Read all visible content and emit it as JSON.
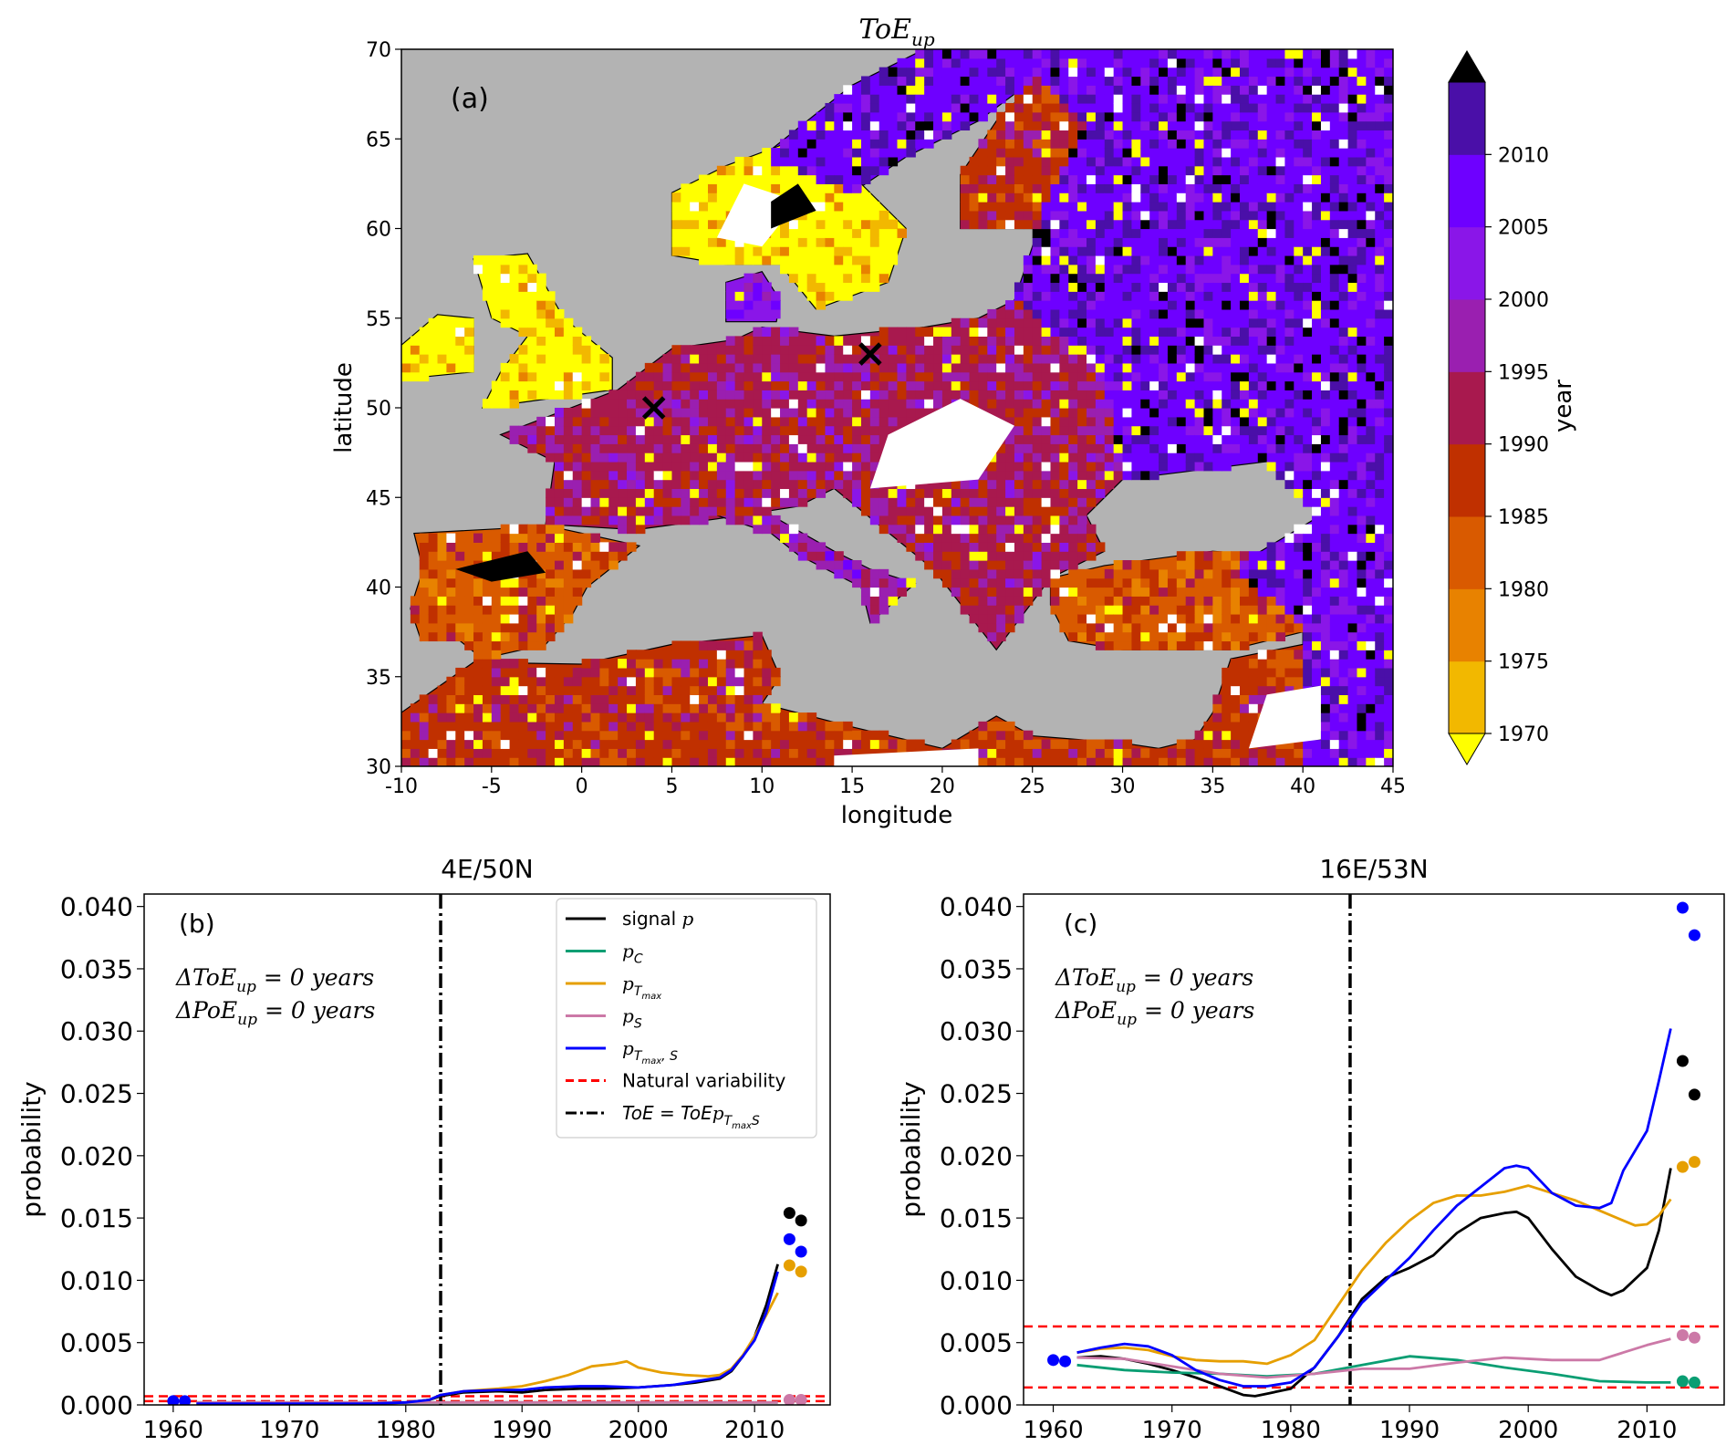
{
  "figure": {
    "map_title_main": "ToE",
    "map_title_sub": "up"
  },
  "chart_data": [
    {
      "type": "heatmap",
      "panel_label": "(a)",
      "title": "ToE_up",
      "xlabel": "longitude",
      "ylabel": "latitude",
      "xlim": [
        -10,
        45
      ],
      "ylim": [
        30,
        70
      ],
      "xticks": [
        "-10",
        "-5",
        "0",
        "5",
        "10",
        "15",
        "20",
        "25",
        "30",
        "35",
        "40",
        "45"
      ],
      "yticks": [
        "30",
        "35",
        "40",
        "45",
        "50",
        "55",
        "60",
        "65",
        "70"
      ],
      "colorbar": {
        "label": "year",
        "ticks": [
          "1970",
          "1975",
          "1980",
          "1985",
          "1990",
          "1995",
          "2000",
          "2005",
          "2010"
        ],
        "colors": [
          "#f2b800",
          "#e88200",
          "#d95a00",
          "#c03000",
          "#a8194e",
          "#9a1fb0",
          "#8a16e8",
          "#6e00ff",
          "#4a0fa8"
        ],
        "under_color": "#ffff00",
        "over_color": "#000000"
      },
      "colors": {
        "sea": "#b3b3b3",
        "no_emergence": "#ffffff"
      },
      "markers": [
        {
          "lon": 4,
          "lat": 50,
          "symbol": "x"
        },
        {
          "lon": 16,
          "lat": 53,
          "symbol": "x"
        }
      ]
    },
    {
      "type": "line",
      "panel_label": "(b)",
      "title": "4E/50N",
      "ylabel": "probability",
      "xlim": [
        1957.5,
        2016.5
      ],
      "ylim": [
        0,
        0.041
      ],
      "xticks": [
        "1960",
        "1970",
        "1980",
        "1990",
        "2000",
        "2010"
      ],
      "yticks": [
        "0.000",
        "0.005",
        "0.010",
        "0.015",
        "0.020",
        "0.025",
        "0.030",
        "0.035",
        "0.040"
      ],
      "annotations": [
        {
          "text": "ΔToE",
          "sub": "up",
          "rest": "= 0 years"
        },
        {
          "text": "ΔPoE",
          "sub": "up",
          "rest": "= 0 years"
        }
      ],
      "toe_year": 1983,
      "natural_variability": [
        0.0003,
        0.0007
      ],
      "series": [
        {
          "key": "signal",
          "color": "#000000",
          "x": [
            1962,
            1967,
            1972,
            1977,
            1980,
            1982,
            1983,
            1985,
            1988,
            1990,
            1992,
            1995,
            1997,
            2000,
            2003,
            2005,
            2007,
            2008,
            2009,
            2010,
            2011,
            2012
          ],
          "y": [
            0.0001,
            0.0001,
            0.0001,
            0.0001,
            0.0002,
            0.0004,
            0.0007,
            0.001,
            0.0011,
            0.001,
            0.0012,
            0.0013,
            0.0013,
            0.0014,
            0.0016,
            0.0018,
            0.0021,
            0.0027,
            0.0039,
            0.0055,
            0.008,
            0.0113
          ]
        },
        {
          "key": "pC",
          "color": "#0a9e73",
          "x": [
            1962,
            1975,
            1990,
            2000,
            2012
          ],
          "y": [
            0.0002,
            0.0002,
            0.0002,
            0.0002,
            0.0002
          ]
        },
        {
          "key": "pTmax",
          "color": "#e69f00",
          "x": [
            1962,
            1967,
            1972,
            1977,
            1980,
            1982,
            1983,
            1985,
            1988,
            1990,
            1992,
            1994,
            1996,
            1998,
            1999,
            2000,
            2002,
            2004,
            2006,
            2007,
            2008,
            2009,
            2010,
            2011,
            2012
          ],
          "y": [
            0.0001,
            0.0001,
            0.0001,
            0.0001,
            0.0002,
            0.0004,
            0.0008,
            0.0011,
            0.0013,
            0.0015,
            0.0019,
            0.0024,
            0.0031,
            0.0033,
            0.0035,
            0.003,
            0.0026,
            0.0024,
            0.0023,
            0.0024,
            0.0029,
            0.004,
            0.0055,
            0.0072,
            0.009
          ]
        },
        {
          "key": "pS",
          "color": "#cc79a7",
          "x": [
            1962,
            1975,
            1990,
            2000,
            2012
          ],
          "y": [
            0.0002,
            0.0002,
            0.0002,
            0.0002,
            0.0002
          ]
        },
        {
          "key": "pTmaxS",
          "color": "#0000ff",
          "x": [
            1962,
            1967,
            1972,
            1977,
            1980,
            1982,
            1983,
            1985,
            1988,
            1990,
            1992,
            1995,
            1997,
            2000,
            2003,
            2005,
            2007,
            2008,
            2009,
            2010,
            2011,
            2012
          ],
          "y": [
            0.0001,
            0.0001,
            0.0001,
            0.0001,
            0.0002,
            0.0004,
            0.0008,
            0.0011,
            0.0012,
            0.0012,
            0.0014,
            0.0015,
            0.0015,
            0.0014,
            0.0016,
            0.0019,
            0.0022,
            0.0028,
            0.0039,
            0.0052,
            0.0074,
            0.0107
          ]
        }
      ],
      "dots": [
        {
          "x": 1960,
          "y": 0.0003,
          "color": "#0000ff"
        },
        {
          "x": 1961,
          "y": 0.0003,
          "color": "#0000ff"
        },
        {
          "x": 2013,
          "y": 0.0154,
          "color": "#000000"
        },
        {
          "x": 2014,
          "y": 0.0148,
          "color": "#000000"
        },
        {
          "x": 2013,
          "y": 0.0133,
          "color": "#0000ff"
        },
        {
          "x": 2014,
          "y": 0.0123,
          "color": "#0000ff"
        },
        {
          "x": 2013,
          "y": 0.0112,
          "color": "#e69f00"
        },
        {
          "x": 2014,
          "y": 0.0107,
          "color": "#e69f00"
        },
        {
          "x": 2013,
          "y": 0.0004,
          "color": "#cc79a7"
        },
        {
          "x": 2014,
          "y": 0.0004,
          "color": "#cc79a7"
        }
      ],
      "legend": {
        "placement": "top-right",
        "entries": [
          {
            "key": "signal",
            "label": "signal ",
            "math": "p",
            "style": "solid",
            "color": "#000000"
          },
          {
            "key": "pC",
            "label": "",
            "math": "p",
            "sub": "C",
            "style": "solid",
            "color": "#0a9e73"
          },
          {
            "key": "pTmax",
            "label": "",
            "math": "p",
            "sub": "T",
            "subsub": "max",
            "style": "solid",
            "color": "#e69f00"
          },
          {
            "key": "pS",
            "label": "",
            "math": "p",
            "sub": "S",
            "style": "solid",
            "color": "#cc79a7"
          },
          {
            "key": "pTmaxS",
            "label": "",
            "math": "p",
            "sub": "T",
            "subsub": "max",
            "subtail": ", S",
            "style": "solid",
            "color": "#0000ff"
          },
          {
            "key": "nat",
            "label": "Natural variability",
            "style": "dashed",
            "color": "#ff0000"
          },
          {
            "key": "toe",
            "label": "ToE = ToE",
            "math": "p",
            "sub": "T",
            "subsub": "max",
            "subtail": "S",
            "style": "dashdot",
            "color": "#000000"
          }
        ]
      }
    },
    {
      "type": "line",
      "panel_label": "(c)",
      "title": "16E/53N",
      "ylabel": "probability",
      "xlim": [
        1957.5,
        2016.5
      ],
      "ylim": [
        0,
        0.041
      ],
      "xticks": [
        "1960",
        "1970",
        "1980",
        "1990",
        "2000",
        "2010"
      ],
      "yticks": [
        "0.000",
        "0.005",
        "0.010",
        "0.015",
        "0.020",
        "0.025",
        "0.030",
        "0.035",
        "0.040"
      ],
      "annotations": [
        {
          "text": "ΔToE",
          "sub": "up",
          "rest": "= 0 years"
        },
        {
          "text": "ΔPoE",
          "sub": "up",
          "rest": "= 0 years"
        }
      ],
      "toe_year": 1985,
      "natural_variability": [
        0.0014,
        0.0063
      ],
      "series": [
        {
          "key": "signal",
          "color": "#000000",
          "x": [
            1962,
            1964,
            1966,
            1968,
            1970,
            1972,
            1974,
            1976,
            1977,
            1978,
            1980,
            1982,
            1984,
            1986,
            1988,
            1990,
            1992,
            1994,
            1996,
            1998,
            1999,
            2000,
            2002,
            2004,
            2006,
            2007,
            2008,
            2010,
            2011,
            2012
          ],
          "y": [
            0.0038,
            0.0039,
            0.0037,
            0.0033,
            0.0028,
            0.0022,
            0.0015,
            0.0008,
            0.0007,
            0.0009,
            0.0013,
            0.003,
            0.0055,
            0.0085,
            0.0102,
            0.011,
            0.012,
            0.0138,
            0.015,
            0.0154,
            0.0155,
            0.015,
            0.0125,
            0.0103,
            0.0092,
            0.0088,
            0.0092,
            0.011,
            0.014,
            0.019
          ]
        },
        {
          "key": "pC",
          "color": "#0a9e73",
          "x": [
            1962,
            1966,
            1970,
            1974,
            1978,
            1982,
            1986,
            1990,
            1994,
            1998,
            2002,
            2006,
            2010,
            2012
          ],
          "y": [
            0.0032,
            0.0028,
            0.0026,
            0.0025,
            0.0023,
            0.0025,
            0.0032,
            0.0039,
            0.0036,
            0.003,
            0.0025,
            0.0019,
            0.0018,
            0.0018
          ]
        },
        {
          "key": "pTmax",
          "color": "#e69f00",
          "x": [
            1962,
            1964,
            1966,
            1968,
            1970,
            1972,
            1974,
            1976,
            1978,
            1980,
            1982,
            1984,
            1986,
            1988,
            1990,
            1992,
            1994,
            1996,
            1998,
            2000,
            2002,
            2004,
            2006,
            2008,
            2009,
            2010,
            2011,
            2012
          ],
          "y": [
            0.0042,
            0.0045,
            0.0046,
            0.0044,
            0.0039,
            0.0036,
            0.0035,
            0.0035,
            0.0033,
            0.004,
            0.0052,
            0.008,
            0.0108,
            0.013,
            0.0148,
            0.0162,
            0.0168,
            0.0168,
            0.0171,
            0.0176,
            0.017,
            0.0164,
            0.0156,
            0.0148,
            0.0144,
            0.0145,
            0.0152,
            0.0165
          ]
        },
        {
          "key": "pS",
          "color": "#cc79a7",
          "x": [
            1962,
            1966,
            1970,
            1974,
            1978,
            1982,
            1986,
            1990,
            1994,
            1998,
            2002,
            2006,
            2008,
            2010,
            2012
          ],
          "y": [
            0.0038,
            0.0037,
            0.0031,
            0.0025,
            0.0022,
            0.0025,
            0.0029,
            0.0029,
            0.0034,
            0.0038,
            0.0036,
            0.0036,
            0.0042,
            0.0048,
            0.0053
          ]
        },
        {
          "key": "pTmaxS",
          "color": "#0000ff",
          "x": [
            1962,
            1964,
            1966,
            1968,
            1970,
            1972,
            1974,
            1976,
            1978,
            1980,
            1982,
            1984,
            1986,
            1988,
            1990,
            1992,
            1994,
            1996,
            1998,
            1999,
            2000,
            2002,
            2004,
            2006,
            2007,
            2008,
            2010,
            2011,
            2012
          ],
          "y": [
            0.0042,
            0.0046,
            0.0049,
            0.0047,
            0.004,
            0.0028,
            0.002,
            0.0015,
            0.0015,
            0.0018,
            0.003,
            0.0055,
            0.0082,
            0.01,
            0.0118,
            0.014,
            0.016,
            0.0175,
            0.019,
            0.0192,
            0.019,
            0.017,
            0.016,
            0.0158,
            0.0162,
            0.0188,
            0.022,
            0.026,
            0.0302
          ]
        }
      ],
      "dots": [
        {
          "x": 1960,
          "y": 0.0036,
          "color": "#0000ff"
        },
        {
          "x": 1961,
          "y": 0.0035,
          "color": "#0000ff"
        },
        {
          "x": 2013,
          "y": 0.0399,
          "color": "#0000ff"
        },
        {
          "x": 2014,
          "y": 0.0377,
          "color": "#0000ff"
        },
        {
          "x": 2013,
          "y": 0.0276,
          "color": "#000000"
        },
        {
          "x": 2014,
          "y": 0.0249,
          "color": "#000000"
        },
        {
          "x": 2013,
          "y": 0.0191,
          "color": "#e69f00"
        },
        {
          "x": 2014,
          "y": 0.0195,
          "color": "#e69f00"
        },
        {
          "x": 2013,
          "y": 0.0056,
          "color": "#cc79a7"
        },
        {
          "x": 2014,
          "y": 0.0054,
          "color": "#cc79a7"
        },
        {
          "x": 2013,
          "y": 0.0019,
          "color": "#0a9e73"
        },
        {
          "x": 2014,
          "y": 0.0018,
          "color": "#0a9e73"
        }
      ]
    }
  ]
}
